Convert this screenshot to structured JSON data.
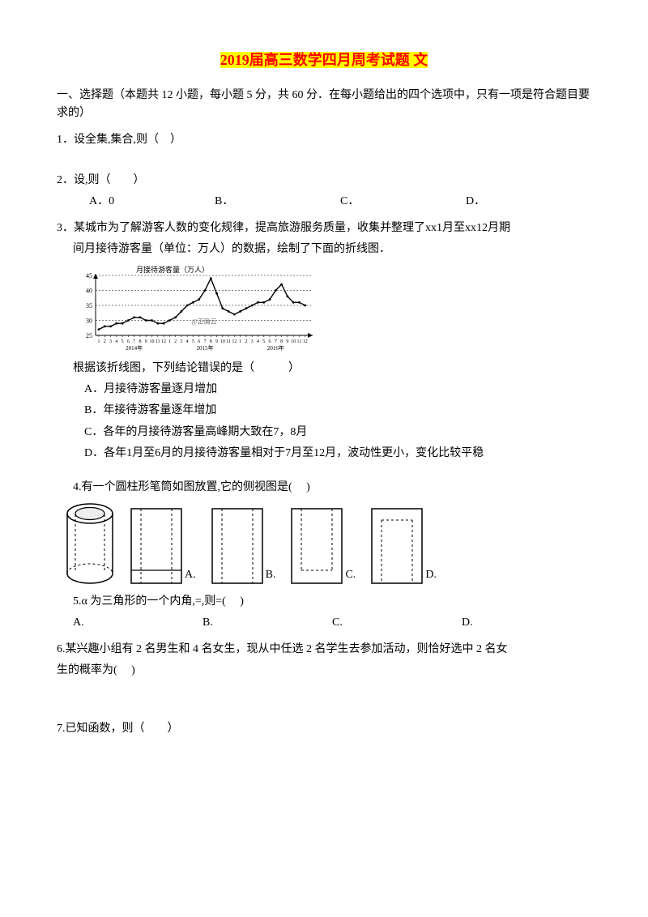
{
  "title": {
    "year": "2019",
    "rest": "届高三数学四月周考试题 文"
  },
  "section_intro": "一、选择题（本题共 12 小题，每小题 5 分，共 60 分．在每小题给出的四个选项中，只有一项是符合题目要求的）",
  "q1": {
    "text": "1．设全集,集合,则（　）"
  },
  "q2": {
    "text": "2．设,则（　　）",
    "opts": {
      "a": "A．0",
      "b": "B．",
      "c": "C．",
      "d": "D．"
    }
  },
  "q3": {
    "text_l1": "3．某城市为了解游客人数的变化规律，提高旅游服务质量，收集并整理了xx1月至xx12月期",
    "text_l2": "间月接待游客量（单位：万人）的数据，绘制了下面的折线图．",
    "chart": {
      "ylabel": "月接待游客量（万人）",
      "yticks": [
        25,
        30,
        35,
        40,
        45
      ],
      "xticks": [
        1,
        2,
        3,
        4,
        5,
        6,
        7,
        8,
        9,
        10,
        11,
        12,
        1,
        2,
        3,
        4,
        5,
        6,
        7,
        8,
        9,
        10,
        11,
        12,
        1,
        2,
        3,
        4,
        5,
        6,
        7,
        8,
        9,
        10,
        11,
        12
      ],
      "xgroup_labels": [
        "2014年",
        "2015年",
        "2016年"
      ],
      "annotation": "@正确云",
      "line_color": "#000000",
      "grid_style": "dashed",
      "grid_color": "#000000",
      "background_color": "#ffffff",
      "values": [
        27,
        28,
        28,
        29,
        29,
        30,
        31,
        31,
        30,
        30,
        29,
        29,
        30,
        31,
        33,
        35,
        36,
        37,
        40,
        44,
        39,
        34,
        33,
        32,
        33,
        34,
        35,
        36,
        36,
        37,
        40,
        42,
        38,
        36,
        36,
        35
      ]
    },
    "prompt": "根据该折线图，下列结论错误的是（　　　）",
    "opts": {
      "a": "A．月接待游客量逐月增加",
      "b": "B．年接待游客量逐年增加",
      "c": "C．各年的月接待游客量高峰期大致在7，8月",
      "d": "D．各年1月至6月的月接待游客量相对于7月至12月，波动性更小，变化比较平稳"
    }
  },
  "q4": {
    "text": "4.有一个圆柱形笔筒如图放置,它的侧视图是(　 )",
    "labels": {
      "a": "A.",
      "b": "B.",
      "c": "C.",
      "d": "D."
    }
  },
  "q5": {
    "text": "5.α 为三角形的一个内角,=,则=(　 )",
    "opts": {
      "a": "A.",
      "b": "B.",
      "c": "C.",
      "d": "D."
    }
  },
  "q6": {
    "text_l1": "6.某兴趣小组有 2 名男生和 4 名女生，现从中任选 2 名学生去参加活动，则恰好选中 2 名女",
    "text_l2": "生的概率为(　 )"
  },
  "q7": {
    "text": "7.已知函数，则（　　）"
  }
}
